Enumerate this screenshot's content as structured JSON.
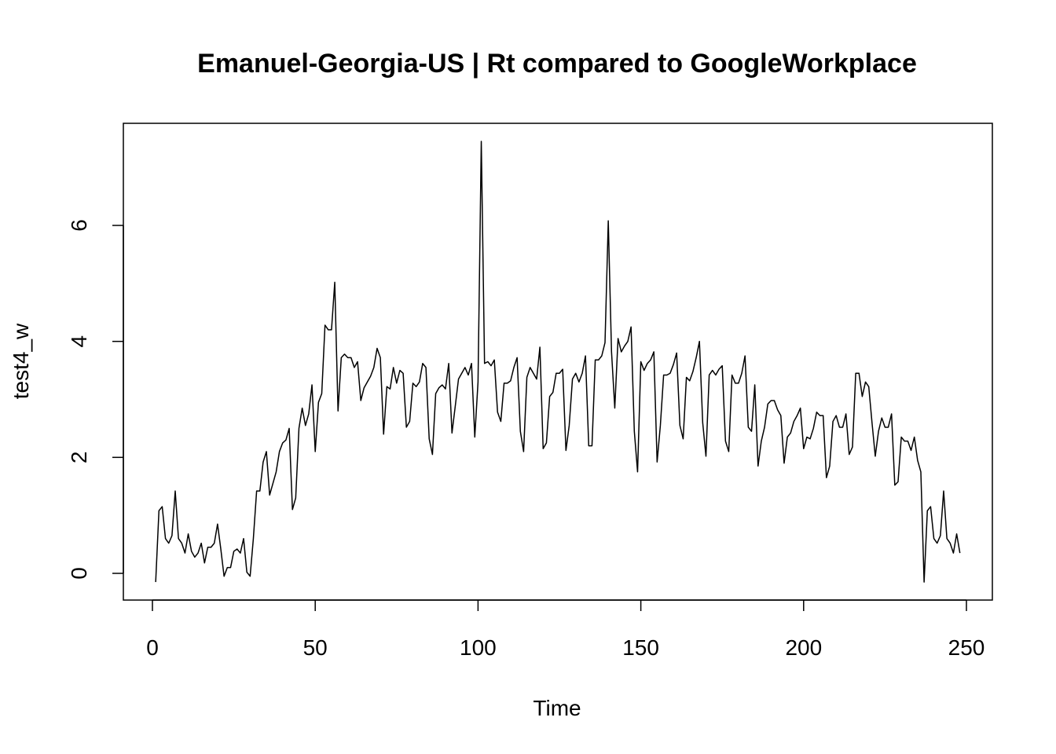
{
  "chart_data": {
    "type": "line",
    "title": "Emanuel-Georgia-US | Rt compared to GoogleWorkplace",
    "xlabel": "Time",
    "ylabel": "test4_w",
    "xlim": [
      1,
      248
    ],
    "ylim": [
      -0.15,
      7.45
    ],
    "x_ticks": [
      0,
      50,
      100,
      150,
      200,
      250
    ],
    "y_ticks": [
      0,
      2,
      4,
      6
    ],
    "grid": false,
    "legend": "none",
    "series": [
      {
        "x_start": 1,
        "x_step": 1,
        "values": [
          -0.15,
          1.08,
          1.15,
          0.6,
          0.52,
          0.65,
          1.42,
          0.6,
          0.52,
          0.35,
          0.68,
          0.38,
          0.28,
          0.35,
          0.52,
          0.18,
          0.45,
          0.45,
          0.52,
          0.85,
          0.42,
          -0.05,
          0.1,
          0.1,
          0.38,
          0.42,
          0.35,
          0.6,
          0.02,
          -0.05,
          0.6,
          1.42,
          1.42,
          1.92,
          2.1,
          1.35,
          1.55,
          1.75,
          2.1,
          2.25,
          2.3,
          2.5,
          1.1,
          1.3,
          2.5,
          2.85,
          2.55,
          2.75,
          3.25,
          2.1,
          2.95,
          3.1,
          4.28,
          4.2,
          4.2,
          5.02,
          2.8,
          3.72,
          3.78,
          3.72,
          3.72,
          3.55,
          3.65,
          2.98,
          3.2,
          3.3,
          3.4,
          3.55,
          3.88,
          3.72,
          2.4,
          3.22,
          3.18,
          3.55,
          3.28,
          3.5,
          3.45,
          2.52,
          2.62,
          3.28,
          3.22,
          3.3,
          3.62,
          3.55,
          2.32,
          2.05,
          3.1,
          3.2,
          3.25,
          3.18,
          3.62,
          2.42,
          2.88,
          3.35,
          3.45,
          3.55,
          3.42,
          3.62,
          2.35,
          3.3,
          7.45,
          3.62,
          3.65,
          3.58,
          3.68,
          2.78,
          2.62,
          3.28,
          3.28,
          3.32,
          3.55,
          3.72,
          2.45,
          2.1,
          3.38,
          3.55,
          3.45,
          3.35,
          3.9,
          2.15,
          2.25,
          3.05,
          3.12,
          3.45,
          3.45,
          3.52,
          2.12,
          2.55,
          3.35,
          3.45,
          3.3,
          3.45,
          3.75,
          2.2,
          2.2,
          3.68,
          3.68,
          3.75,
          3.98,
          6.08,
          3.82,
          2.85,
          4.05,
          3.82,
          3.92,
          4.0,
          4.25,
          2.45,
          1.75,
          3.65,
          3.5,
          3.62,
          3.68,
          3.82,
          1.92,
          2.55,
          3.42,
          3.42,
          3.45,
          3.6,
          3.8,
          2.55,
          2.32,
          3.38,
          3.32,
          3.48,
          3.72,
          4.0,
          2.6,
          2.02,
          3.42,
          3.5,
          3.42,
          3.52,
          3.58,
          2.28,
          2.1,
          3.42,
          3.28,
          3.28,
          3.45,
          3.75,
          2.52,
          2.45,
          3.25,
          1.85,
          2.28,
          2.52,
          2.92,
          2.98,
          2.98,
          2.82,
          2.72,
          1.9,
          2.35,
          2.42,
          2.62,
          2.72,
          2.85,
          2.15,
          2.35,
          2.32,
          2.5,
          2.78,
          2.72,
          2.72,
          1.65,
          1.85,
          2.62,
          2.72,
          2.52,
          2.52,
          2.75,
          2.05,
          2.18,
          3.45,
          3.45,
          3.05,
          3.3,
          3.22,
          2.6,
          2.02,
          2.45,
          2.68,
          2.52,
          2.52,
          2.75,
          1.52,
          1.58,
          2.35,
          2.28,
          2.28,
          2.12,
          2.35,
          1.95,
          1.75,
          -0.15,
          1.08,
          1.15,
          0.6,
          0.52,
          0.65,
          1.42,
          0.6,
          0.52,
          0.35,
          0.68,
          0.35
        ]
      }
    ]
  }
}
